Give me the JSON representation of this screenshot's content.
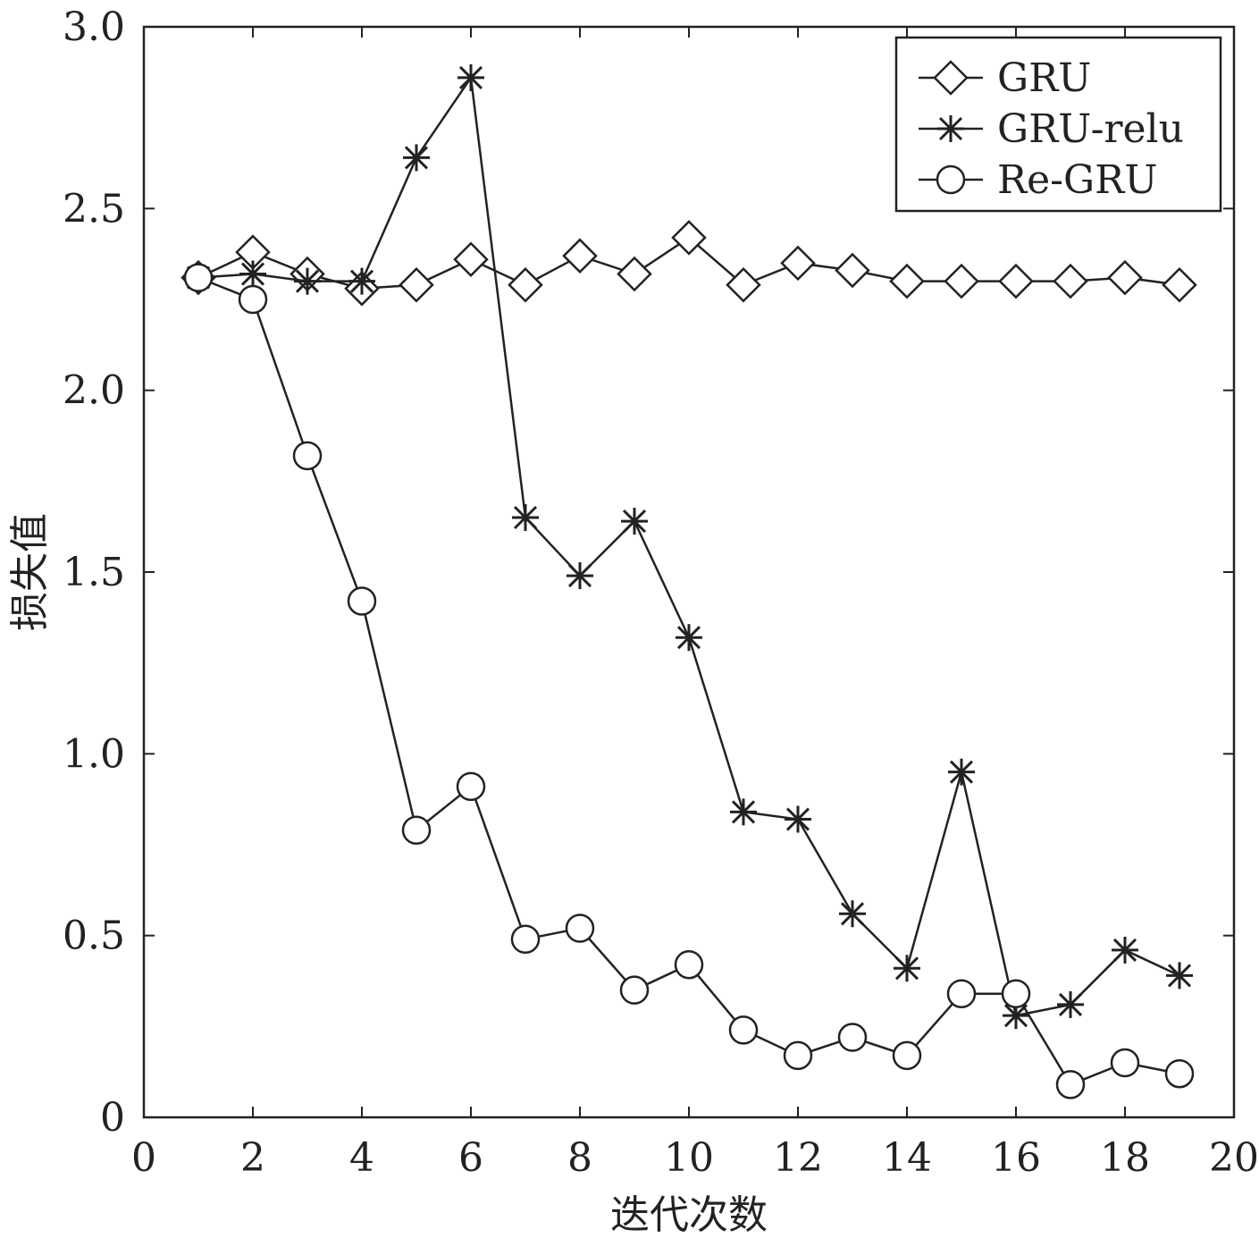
{
  "chart_data": {
    "type": "line",
    "title": "",
    "xlabel": "迭代次数",
    "ylabel": "损失值",
    "xlim": [
      0,
      20
    ],
    "ylim": [
      0,
      3.0
    ],
    "xticks": [
      0,
      2,
      4,
      6,
      8,
      10,
      12,
      14,
      16,
      18,
      20
    ],
    "xtick_labels": [
      "0",
      "2",
      "4",
      "6",
      "8",
      "10",
      "12",
      "14",
      "16",
      "18",
      "20"
    ],
    "yticks": [
      0,
      0.5,
      1.0,
      1.5,
      2.0,
      2.5,
      3.0
    ],
    "ytick_labels": [
      "0",
      "0.5",
      "1.0",
      "1.5",
      "2.0",
      "2.5",
      "3.0"
    ],
    "grid": false,
    "legend_position": "top-right",
    "x": [
      1,
      2,
      3,
      4,
      5,
      6,
      7,
      8,
      9,
      10,
      11,
      12,
      13,
      14,
      15,
      16,
      17,
      18,
      19
    ],
    "series": [
      {
        "name": "GRU",
        "marker": "diamond",
        "values": [
          2.31,
          2.38,
          2.32,
          2.28,
          2.29,
          2.36,
          2.29,
          2.37,
          2.32,
          2.42,
          2.29,
          2.35,
          2.33,
          2.3,
          2.3,
          2.3,
          2.3,
          2.31,
          2.29
        ]
      },
      {
        "name": "GRU-relu",
        "marker": "star",
        "values": [
          2.31,
          2.32,
          2.3,
          2.3,
          2.64,
          2.86,
          1.65,
          1.49,
          1.64,
          1.32,
          0.84,
          0.82,
          0.56,
          0.41,
          0.95,
          0.28,
          0.31,
          0.46,
          0.39
        ]
      },
      {
        "name": "Re-GRU",
        "marker": "circle",
        "values": [
          2.31,
          2.25,
          1.82,
          1.42,
          0.79,
          0.91,
          0.49,
          0.52,
          0.35,
          0.42,
          0.24,
          0.17,
          0.22,
          0.17,
          0.34,
          0.34,
          0.09,
          0.15,
          0.12
        ]
      }
    ]
  }
}
